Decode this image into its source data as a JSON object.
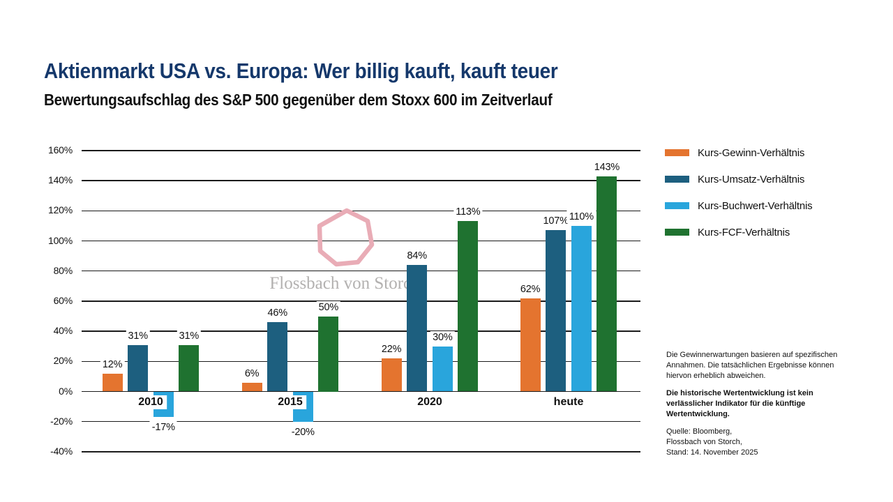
{
  "header": {
    "title": "Aktienmarkt USA vs. Europa: Wer billig kauft, kauft teuer",
    "subtitle": "Bewertungsaufschlag des S&P 500 gegenüber dem Stoxx 600 im Zeitverlauf"
  },
  "watermark": {
    "text": "Flossbach von Storch",
    "shape_color": "#E9ACB6",
    "text_color": "#b3b1b0"
  },
  "chart_data": {
    "type": "bar",
    "categories": [
      "2010",
      "2015",
      "2020",
      "heute"
    ],
    "series": [
      {
        "name": "Kurs-Gewinn-Verhältnis",
        "color": "#E4742F",
        "values": [
          12,
          6,
          22,
          62
        ]
      },
      {
        "name": "Kurs-Umsatz-Verhältnis",
        "color": "#1D5F7F",
        "values": [
          31,
          46,
          84,
          107
        ]
      },
      {
        "name": "Kurs-Buchwert-Verhältnis",
        "color": "#29A5DC",
        "values": [
          -17,
          -20,
          30,
          110
        ]
      },
      {
        "name": "Kurs-FCF-Verhältnis",
        "color": "#1F7230",
        "values": [
          31,
          50,
          113,
          143
        ]
      }
    ],
    "value_suffix": "%",
    "ylim": [
      -40,
      160
    ],
    "ytick_step": 20,
    "ytick_suffix": "%",
    "grid": true,
    "legend_position": "right",
    "data_labels": true
  },
  "footnotes": {
    "risk_lines": [
      "Die Gewinnerwartungen basieren auf spezifischen",
      "Annahmen. Die tatsächlichen Ergebnisse können",
      "hiervon erheblich abweichen."
    ],
    "disclaimer_bold_lines": [
      "Die historische Wertentwicklung ist kein",
      "verlässlicher Indikator für die künftige",
      "Wertentwicklung."
    ],
    "source_lines": [
      "Quelle: Bloomberg,",
      "Flossbach von Storch,",
      "Stand: 14. November 2025"
    ]
  }
}
